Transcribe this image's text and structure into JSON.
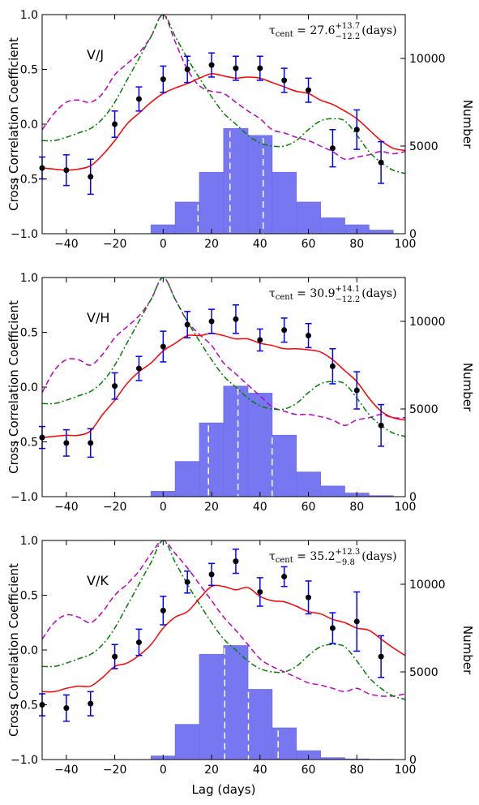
{
  "figure": {
    "xlabel": "Lag (days)",
    "ylabel_left": "Cross Correlation Coefficient",
    "ylabel_right": "Number",
    "x_ticks": [
      "−40",
      "−20",
      "0",
      "20",
      "40",
      "60",
      "80",
      "100"
    ],
    "y_ticks": [
      "1.0",
      "0.5",
      "0.0",
      "−0.5",
      "−1.0"
    ],
    "yr_ticks": [
      "10000",
      "5000",
      "0"
    ],
    "colors": {
      "ccf": "#ff0000",
      "acf_driver": "#008000",
      "acf_resp": "#bf00bf",
      "hist": "#7070f0",
      "points": "#000000",
      "errbar": "#0000ff"
    }
  },
  "chart_data": [
    {
      "type": "line",
      "label": "V/J",
      "tau_value": "27.6",
      "tau_plus": "+13.7",
      "tau_minus": "−12.2",
      "tau_unit": "(days)",
      "xlim": [
        -50,
        100
      ],
      "ylim": [
        -1.0,
        1.0
      ],
      "y2lim": [
        0,
        12500
      ],
      "ccf": {
        "x": [
          -50,
          -45,
          -40,
          -35,
          -30,
          -25,
          -20,
          -15,
          -10,
          -5,
          0,
          5,
          10,
          15,
          20,
          25,
          30,
          35,
          40,
          45,
          50,
          55,
          60,
          65,
          70,
          75,
          80,
          85,
          90,
          95,
          100
        ],
        "y": [
          -0.4,
          -0.41,
          -0.42,
          -0.41,
          -0.38,
          -0.28,
          -0.15,
          0.0,
          0.1,
          0.2,
          0.28,
          0.33,
          0.37,
          0.42,
          0.46,
          0.44,
          0.42,
          0.43,
          0.42,
          0.38,
          0.34,
          0.3,
          0.28,
          0.22,
          0.18,
          0.12,
          0.05,
          -0.05,
          -0.15,
          -0.22,
          -0.24
        ]
      },
      "acf_driver": {
        "x": [
          -50,
          -45,
          -40,
          -35,
          -30,
          -25,
          -20,
          -15,
          -10,
          -5,
          0,
          5,
          10,
          15,
          20,
          25,
          30,
          35,
          40,
          45,
          50,
          55,
          60,
          65,
          70,
          75,
          80,
          85,
          90,
          95,
          100
        ],
        "y": [
          -0.15,
          -0.15,
          -0.12,
          -0.08,
          -0.04,
          0.05,
          0.2,
          0.4,
          0.6,
          0.8,
          1.0,
          0.8,
          0.6,
          0.42,
          0.25,
          0.1,
          0.0,
          -0.1,
          -0.17,
          -0.2,
          -0.2,
          -0.15,
          -0.05,
          0.03,
          0.05,
          0.03,
          -0.1,
          -0.25,
          -0.35,
          -0.42,
          -0.45
        ]
      },
      "acf_resp": {
        "x": [
          -50,
          -45,
          -40,
          -35,
          -30,
          -25,
          -20,
          -15,
          -10,
          -5,
          0,
          5,
          10,
          15,
          20,
          25,
          30,
          35,
          40,
          45,
          50,
          55,
          60,
          65,
          70,
          75,
          80,
          85,
          90,
          95,
          100
        ],
        "y": [
          -0.05,
          0.1,
          0.2,
          0.22,
          0.2,
          0.28,
          0.45,
          0.55,
          0.65,
          0.8,
          1.0,
          0.75,
          0.5,
          0.35,
          0.3,
          0.28,
          0.2,
          0.12,
          0.05,
          -0.05,
          -0.08,
          -0.12,
          -0.15,
          -0.2,
          -0.25,
          -0.32,
          -0.3,
          -0.28,
          -0.25,
          -0.27,
          -0.25
        ]
      },
      "points": {
        "x": [
          -50,
          -40,
          -30,
          -20,
          -10,
          0,
          10,
          20,
          30,
          40,
          50,
          60,
          70,
          80,
          90
        ],
        "y": [
          -0.4,
          -0.42,
          -0.48,
          0.0,
          0.23,
          0.41,
          0.5,
          0.54,
          0.51,
          0.51,
          0.4,
          0.31,
          -0.22,
          -0.05,
          -0.35
        ],
        "err": [
          0.1,
          0.14,
          0.16,
          0.12,
          0.11,
          0.12,
          0.12,
          0.11,
          0.11,
          0.11,
          0.11,
          0.11,
          0.17,
          0.18,
          0.19
        ]
      },
      "hist": {
        "bins": [
          -5,
          5,
          15,
          25,
          35,
          45,
          55,
          65,
          75,
          85
        ],
        "counts": [
          500,
          1800,
          3500,
          6000,
          5600,
          3500,
          1800,
          900,
          500,
          200
        ]
      },
      "dashed": [
        14.4,
        27.6,
        41.3
      ]
    },
    {
      "type": "line",
      "label": "V/H",
      "tau_value": "30.9",
      "tau_plus": "+14.1",
      "tau_minus": "−12.2",
      "tau_unit": "(days)",
      "xlim": [
        -50,
        100
      ],
      "ylim": [
        -1.0,
        1.0
      ],
      "y2lim": [
        0,
        12500
      ],
      "ccf": {
        "x": [
          -50,
          -45,
          -40,
          -35,
          -30,
          -25,
          -20,
          -15,
          -10,
          -5,
          0,
          5,
          10,
          15,
          20,
          25,
          30,
          35,
          40,
          45,
          50,
          55,
          60,
          65,
          70,
          75,
          80,
          85,
          90,
          95,
          100
        ],
        "y": [
          -0.46,
          -0.45,
          -0.44,
          -0.44,
          -0.4,
          -0.25,
          -0.12,
          0.03,
          0.14,
          0.22,
          0.33,
          0.4,
          0.47,
          0.47,
          0.49,
          0.47,
          0.44,
          0.44,
          0.4,
          0.38,
          0.35,
          0.35,
          0.34,
          0.32,
          0.25,
          0.15,
          0.05,
          -0.1,
          -0.22,
          -0.28,
          -0.3
        ]
      },
      "acf_driver": {
        "x": [
          -50,
          -45,
          -40,
          -35,
          -30,
          -25,
          -20,
          -15,
          -10,
          -5,
          0,
          5,
          10,
          15,
          20,
          25,
          30,
          35,
          40,
          45,
          50,
          55,
          60,
          65,
          70,
          75,
          80,
          85,
          90,
          95,
          100
        ],
        "y": [
          -0.15,
          -0.15,
          -0.12,
          -0.08,
          -0.04,
          0.05,
          0.2,
          0.4,
          0.6,
          0.8,
          1.0,
          0.8,
          0.6,
          0.42,
          0.25,
          0.1,
          0.0,
          -0.1,
          -0.17,
          -0.2,
          -0.2,
          -0.15,
          -0.05,
          0.03,
          0.05,
          0.03,
          -0.1,
          -0.25,
          -0.35,
          -0.42,
          -0.45
        ]
      },
      "acf_resp": {
        "x": [
          -50,
          -45,
          -40,
          -35,
          -30,
          -25,
          -20,
          -15,
          -10,
          -5,
          0,
          5,
          10,
          15,
          20,
          25,
          30,
          35,
          40,
          45,
          50,
          55,
          60,
          65,
          70,
          75,
          80,
          85,
          90,
          95,
          100
        ],
        "y": [
          -0.05,
          0.15,
          0.25,
          0.25,
          0.2,
          0.3,
          0.45,
          0.55,
          0.65,
          0.8,
          1.0,
          0.8,
          0.6,
          0.48,
          0.38,
          0.22,
          0.12,
          0.02,
          -0.08,
          -0.18,
          -0.22,
          -0.25,
          -0.25,
          -0.27,
          -0.3,
          -0.35,
          -0.3,
          -0.28,
          -0.25,
          -0.28,
          -0.28
        ]
      },
      "points": {
        "x": [
          -50,
          -40,
          -30,
          -20,
          -10,
          0,
          10,
          20,
          30,
          40,
          50,
          60,
          70,
          80,
          90
        ],
        "y": [
          -0.46,
          -0.51,
          -0.51,
          0.01,
          0.17,
          0.37,
          0.57,
          0.6,
          0.62,
          0.43,
          0.52,
          0.47,
          0.19,
          -0.03,
          -0.35
        ],
        "err": [
          0.1,
          0.12,
          0.13,
          0.12,
          0.11,
          0.14,
          0.12,
          0.11,
          0.13,
          0.1,
          0.11,
          0.11,
          0.16,
          0.17,
          0.19
        ]
      },
      "hist": {
        "bins": [
          -5,
          5,
          15,
          25,
          35,
          45,
          55,
          65,
          75,
          85
        ],
        "counts": [
          300,
          2000,
          4200,
          6300,
          5900,
          3500,
          1400,
          600,
          200,
          50
        ]
      },
      "dashed": [
        18.7,
        30.9,
        45.0
      ]
    },
    {
      "type": "line",
      "label": "V/K",
      "tau_value": "35.2",
      "tau_plus": "+12.3",
      "tau_minus": "−9.8",
      "tau_unit": "(days)",
      "xlim": [
        -50,
        100
      ],
      "ylim": [
        -1.0,
        1.0
      ],
      "y2lim": [
        0,
        12500
      ],
      "ccf": {
        "x": [
          -50,
          -45,
          -40,
          -35,
          -30,
          -25,
          -20,
          -15,
          -10,
          -5,
          0,
          5,
          10,
          15,
          20,
          25,
          30,
          35,
          40,
          45,
          50,
          55,
          60,
          65,
          70,
          75,
          80,
          85,
          90,
          95,
          100
        ],
        "y": [
          -0.38,
          -0.38,
          -0.35,
          -0.33,
          -0.33,
          -0.25,
          -0.15,
          -0.12,
          -0.05,
          0.05,
          0.2,
          0.3,
          0.35,
          0.47,
          0.58,
          0.58,
          0.55,
          0.57,
          0.49,
          0.45,
          0.44,
          0.4,
          0.35,
          0.33,
          0.28,
          0.25,
          0.2,
          0.18,
          0.1,
          0.02,
          -0.05
        ]
      },
      "acf_driver": {
        "x": [
          -50,
          -45,
          -40,
          -35,
          -30,
          -25,
          -20,
          -15,
          -10,
          -5,
          0,
          5,
          10,
          15,
          20,
          25,
          30,
          35,
          40,
          45,
          50,
          55,
          60,
          65,
          70,
          75,
          80,
          85,
          90,
          95,
          100
        ],
        "y": [
          -0.15,
          -0.15,
          -0.12,
          -0.08,
          -0.04,
          0.05,
          0.2,
          0.4,
          0.6,
          0.8,
          1.0,
          0.8,
          0.6,
          0.42,
          0.25,
          0.1,
          0.0,
          -0.1,
          -0.17,
          -0.2,
          -0.2,
          -0.15,
          -0.05,
          0.03,
          0.05,
          0.03,
          -0.1,
          -0.25,
          -0.35,
          -0.42,
          -0.45
        ]
      },
      "acf_resp": {
        "x": [
          -50,
          -45,
          -40,
          -35,
          -30,
          -25,
          -20,
          -15,
          -10,
          -5,
          0,
          5,
          10,
          15,
          20,
          25,
          30,
          35,
          40,
          45,
          50,
          55,
          60,
          65,
          70,
          75,
          80,
          85,
          90,
          95,
          100
        ],
        "y": [
          0.1,
          0.25,
          0.32,
          0.3,
          0.25,
          0.35,
          0.5,
          0.6,
          0.72,
          0.88,
          1.0,
          0.88,
          0.75,
          0.6,
          0.45,
          0.3,
          0.18,
          0.05,
          -0.08,
          -0.15,
          -0.2,
          -0.25,
          -0.3,
          -0.32,
          -0.35,
          -0.38,
          -0.35,
          -0.4,
          -0.42,
          -0.42,
          -0.4
        ]
      },
      "points": {
        "x": [
          -50,
          -40,
          -30,
          -20,
          -10,
          0,
          10,
          20,
          30,
          40,
          50,
          60,
          70,
          80,
          90
        ],
        "y": [
          -0.5,
          -0.53,
          -0.49,
          -0.06,
          0.07,
          0.36,
          0.62,
          0.69,
          0.81,
          0.53,
          0.67,
          0.48,
          0.2,
          0.26,
          -0.06
        ],
        "err": [
          0.1,
          0.12,
          0.11,
          0.11,
          0.12,
          0.13,
          0.1,
          0.1,
          0.11,
          0.13,
          0.09,
          0.15,
          0.14,
          0.27,
          0.19
        ]
      },
      "hist": {
        "bins": [
          -5,
          5,
          15,
          25,
          35,
          45,
          55,
          65,
          75,
          85
        ],
        "counts": [
          200,
          2000,
          6000,
          6500,
          4000,
          1800,
          500,
          100,
          30,
          10
        ]
      },
      "dashed": [
        25.4,
        35.2,
        47.5
      ]
    }
  ]
}
